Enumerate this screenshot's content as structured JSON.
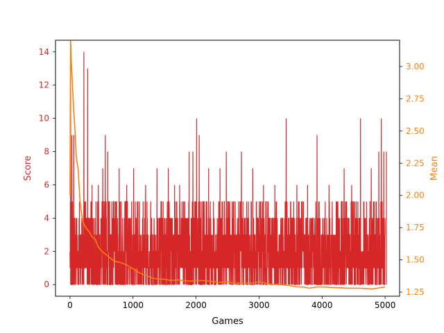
{
  "chart_data": {
    "type": "line",
    "xlabel": "Games",
    "ylabel_left": "Score",
    "ylabel_right": "Mean",
    "xlim": [
      -230,
      5230
    ],
    "ylim_left": [
      -0.7,
      14.7
    ],
    "ylim_right": [
      1.218,
      3.204
    ],
    "x_ticks": [
      0,
      1000,
      2000,
      3000,
      4000,
      5000
    ],
    "y_left_ticks": [
      0,
      2,
      4,
      6,
      8,
      10,
      12,
      14
    ],
    "y_right_ticks": [
      1.25,
      1.5,
      1.75,
      2.0,
      2.25,
      2.5,
      2.75,
      3.0
    ],
    "y_right_tick_labels": [
      "1.25",
      "1.50",
      "1.75",
      "2.00",
      "2.25",
      "2.50",
      "2.75",
      "3.00"
    ],
    "colors": {
      "score": "#d62728",
      "mean": "#ff7f0e",
      "axis": "#000000"
    },
    "series": [
      {
        "axis": "left",
        "game_count": 5000,
        "noise_level_min": 0,
        "noise_level_max": 5,
        "peaks": [
          [
            10,
            14
          ],
          [
            30,
            9
          ],
          [
            60,
            9
          ],
          [
            220,
            14
          ],
          [
            280,
            13
          ],
          [
            350,
            6
          ],
          [
            450,
            6
          ],
          [
            520,
            7
          ],
          [
            560,
            9
          ],
          [
            600,
            8
          ],
          [
            780,
            7
          ],
          [
            900,
            6
          ],
          [
            1010,
            7
          ],
          [
            1200,
            6
          ],
          [
            1380,
            7
          ],
          [
            1560,
            7
          ],
          [
            1660,
            6
          ],
          [
            1740,
            6
          ],
          [
            1890,
            8
          ],
          [
            1950,
            8
          ],
          [
            2010,
            10
          ],
          [
            2050,
            9
          ],
          [
            2200,
            7
          ],
          [
            2380,
            7
          ],
          [
            2480,
            8
          ],
          [
            2720,
            8
          ],
          [
            2900,
            7
          ],
          [
            3070,
            6
          ],
          [
            3250,
            6
          ],
          [
            3430,
            10
          ],
          [
            3600,
            6
          ],
          [
            3770,
            6
          ],
          [
            3920,
            9
          ],
          [
            4110,
            6
          ],
          [
            4350,
            7
          ],
          [
            4470,
            6
          ],
          [
            4610,
            10
          ],
          [
            4780,
            7
          ],
          [
            4900,
            8
          ],
          [
            4940,
            10
          ],
          [
            4980,
            8
          ],
          [
            5020,
            8
          ]
        ]
      },
      {
        "axis": "right",
        "x": [
          0,
          10,
          20,
          40,
          60,
          80,
          100,
          130,
          160,
          200,
          250,
          300,
          350,
          400,
          450,
          500,
          600,
          700,
          800,
          900,
          1000,
          1100,
          1200,
          1300,
          1400,
          1500,
          1600,
          1700,
          1800,
          1900,
          2000,
          2100,
          2200,
          2300,
          2400,
          2500,
          2600,
          2700,
          2800,
          2900,
          3000,
          3100,
          3200,
          3300,
          3400,
          3500,
          3600,
          3700,
          3800,
          3900,
          4000,
          4200,
          4400,
          4600,
          4800,
          5000
        ],
        "y": [
          2.0,
          3.2,
          3.05,
          2.85,
          2.65,
          2.5,
          2.3,
          2.2,
          1.95,
          1.8,
          1.75,
          1.72,
          1.68,
          1.66,
          1.6,
          1.57,
          1.53,
          1.49,
          1.48,
          1.46,
          1.43,
          1.4,
          1.38,
          1.36,
          1.35,
          1.35,
          1.34,
          1.345,
          1.34,
          1.335,
          1.34,
          1.34,
          1.335,
          1.33,
          1.325,
          1.33,
          1.32,
          1.32,
          1.32,
          1.32,
          1.33,
          1.32,
          1.31,
          1.31,
          1.305,
          1.3,
          1.29,
          1.29,
          1.28,
          1.29,
          1.29,
          1.285,
          1.28,
          1.28,
          1.275,
          1.29
        ]
      }
    ]
  }
}
